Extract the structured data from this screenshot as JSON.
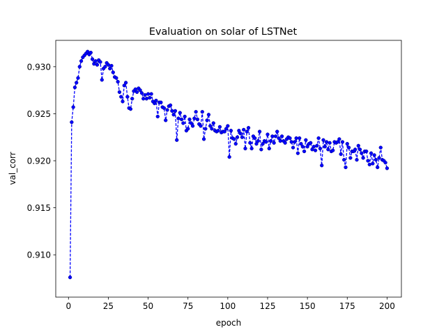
{
  "chart_data": {
    "type": "line",
    "title": "Evaluation on solar of LSTNet",
    "xlabel": "epoch",
    "ylabel": "val_corr",
    "xlim": [
      -8,
      209
    ],
    "ylim": [
      0.9055,
      0.9328
    ],
    "x_ticks": [
      0,
      25,
      50,
      75,
      100,
      125,
      150,
      175,
      200
    ],
    "y_ticks": [
      0.91,
      0.915,
      0.92,
      0.925,
      0.93
    ],
    "x_tick_labels": [
      "0",
      "25",
      "50",
      "75",
      "100",
      "125",
      "150",
      "175",
      "200"
    ],
    "y_tick_labels": [
      "0.910",
      "0.915",
      "0.920",
      "0.925",
      "0.930"
    ],
    "grid": false,
    "series": [
      {
        "color": "#0000ff",
        "line_style": "dashed",
        "marker": "circle",
        "x": [
          1,
          2,
          3,
          4,
          5,
          6,
          7,
          8,
          9,
          10,
          11,
          12,
          13,
          14,
          15,
          16,
          17,
          18,
          19,
          20,
          21,
          22,
          23,
          24,
          25,
          26,
          27,
          28,
          29,
          30,
          31,
          32,
          33,
          34,
          35,
          36,
          37,
          38,
          39,
          40,
          41,
          42,
          43,
          44,
          45,
          46,
          47,
          48,
          49,
          50,
          51,
          52,
          53,
          54,
          55,
          56,
          57,
          58,
          59,
          60,
          61,
          62,
          63,
          64,
          65,
          66,
          67,
          68,
          69,
          70,
          71,
          72,
          73,
          74,
          75,
          76,
          77,
          78,
          79,
          80,
          81,
          82,
          83,
          84,
          85,
          86,
          87,
          88,
          89,
          90,
          91,
          92,
          93,
          94,
          95,
          96,
          97,
          98,
          99,
          100,
          101,
          102,
          103,
          104,
          105,
          106,
          107,
          108,
          109,
          110,
          111,
          112,
          113,
          114,
          115,
          116,
          117,
          118,
          119,
          120,
          121,
          122,
          123,
          124,
          125,
          126,
          127,
          128,
          129,
          130,
          131,
          132,
          133,
          134,
          135,
          136,
          137,
          138,
          139,
          140,
          141,
          142,
          143,
          144,
          145,
          146,
          147,
          148,
          149,
          150,
          151,
          152,
          153,
          154,
          155,
          156,
          157,
          158,
          159,
          160,
          161,
          162,
          163,
          164,
          165,
          166,
          167,
          168,
          169,
          170,
          171,
          172,
          173,
          174,
          175,
          176,
          177,
          178,
          179,
          180,
          181,
          182,
          183,
          184,
          185,
          186,
          187,
          188,
          189,
          190,
          191,
          192,
          193,
          194,
          195,
          196,
          197,
          198,
          199,
          200
        ],
        "y": [
          0.9076,
          0.9241,
          0.9257,
          0.9278,
          0.9283,
          0.9288,
          0.93,
          0.9306,
          0.931,
          0.9312,
          0.9314,
          0.9316,
          0.9313,
          0.9315,
          0.9308,
          0.9303,
          0.9306,
          0.9302,
          0.9307,
          0.9305,
          0.9286,
          0.9298,
          0.93,
          0.9304,
          0.9302,
          0.9298,
          0.9301,
          0.9294,
          0.9289,
          0.9288,
          0.9284,
          0.9273,
          0.9268,
          0.9263,
          0.928,
          0.9283,
          0.9268,
          0.9256,
          0.9255,
          0.9266,
          0.9274,
          0.9276,
          0.9273,
          0.9277,
          0.9275,
          0.9272,
          0.9266,
          0.927,
          0.9266,
          0.9271,
          0.9267,
          0.9271,
          0.9263,
          0.9261,
          0.9264,
          0.9247,
          0.9262,
          0.9262,
          0.9257,
          0.9256,
          0.9243,
          0.9254,
          0.9258,
          0.9259,
          0.9253,
          0.9249,
          0.9253,
          0.9222,
          0.9245,
          0.9251,
          0.9244,
          0.924,
          0.9247,
          0.9232,
          0.9234,
          0.9244,
          0.924,
          0.9237,
          0.9245,
          0.9252,
          0.9244,
          0.9239,
          0.9237,
          0.9252,
          0.9223,
          0.9234,
          0.9243,
          0.9249,
          0.9237,
          0.9234,
          0.924,
          0.9232,
          0.9231,
          0.9232,
          0.9236,
          0.923,
          0.9231,
          0.9231,
          0.9234,
          0.9237,
          0.9204,
          0.9232,
          0.9224,
          0.9223,
          0.9218,
          0.9225,
          0.9232,
          0.9229,
          0.9225,
          0.9233,
          0.9213,
          0.9231,
          0.9235,
          0.9219,
          0.9213,
          0.9226,
          0.9224,
          0.9218,
          0.9221,
          0.9231,
          0.9212,
          0.9218,
          0.9221,
          0.922,
          0.9228,
          0.9213,
          0.9221,
          0.9226,
          0.9219,
          0.9226,
          0.9231,
          0.9224,
          0.9221,
          0.9226,
          0.9221,
          0.9219,
          0.9223,
          0.9225,
          0.9224,
          0.922,
          0.9214,
          0.922,
          0.9224,
          0.9208,
          0.9224,
          0.9218,
          0.9215,
          0.921,
          0.9222,
          0.9215,
          0.9218,
          0.9219,
          0.9212,
          0.9215,
          0.9211,
          0.9216,
          0.9224,
          0.9213,
          0.9195,
          0.9222,
          0.9215,
          0.922,
          0.9212,
          0.9219,
          0.921,
          0.9211,
          0.922,
          0.9219,
          0.922,
          0.9223,
          0.9207,
          0.922,
          0.9201,
          0.9193,
          0.9218,
          0.9214,
          0.9203,
          0.921,
          0.921,
          0.9212,
          0.9201,
          0.9216,
          0.9212,
          0.9208,
          0.9203,
          0.921,
          0.921,
          0.92,
          0.9196,
          0.9208,
          0.9197,
          0.9206,
          0.9201,
          0.9193,
          0.9203,
          0.9214,
          0.9201,
          0.92,
          0.9198,
          0.9192
        ]
      }
    ]
  }
}
